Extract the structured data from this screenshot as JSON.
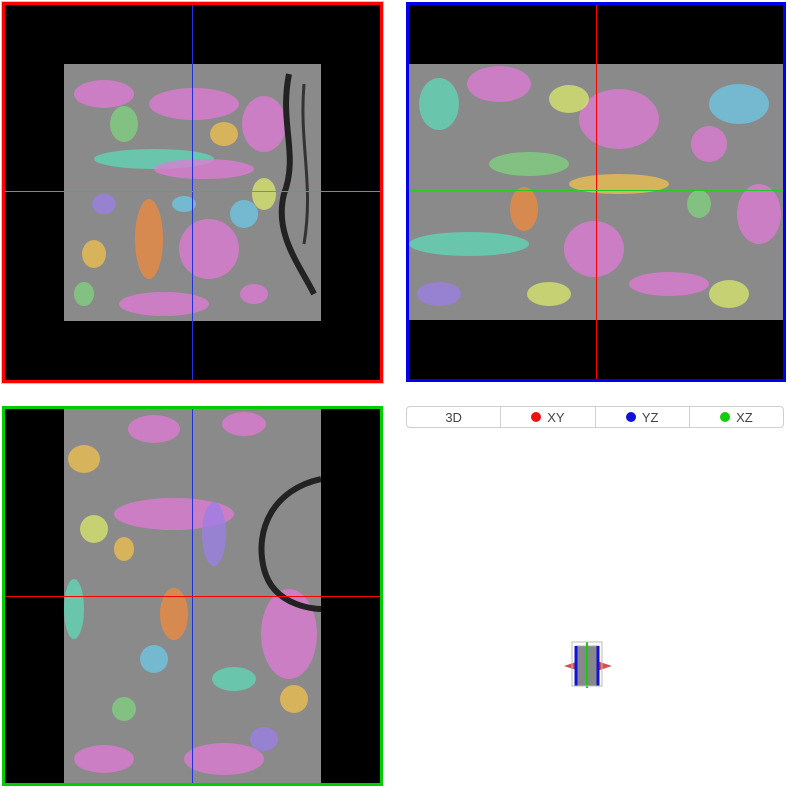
{
  "views": {
    "xy": {
      "label": "XY",
      "border_color": "#ff0000",
      "highlight_color": "#ffd700"
    },
    "yz": {
      "label": "YZ",
      "border_color": "#0000ee"
    },
    "xz": {
      "label": "XZ",
      "border_color": "#00cc00"
    }
  },
  "tabs": [
    {
      "label": "3D",
      "dot": null
    },
    {
      "label": "XY",
      "dot": "#ee1111"
    },
    {
      "label": "YZ",
      "dot": "#1111dd"
    },
    {
      "label": "XZ",
      "dot": "#11cc11"
    }
  ],
  "colors": {
    "crosshair_red": "#ff0000",
    "crosshair_blue": "#2233dd",
    "crosshair_green": "#22cc22",
    "segment_palette": [
      "#e07ad6",
      "#7fd37f",
      "#f0c24b",
      "#6ec8e8",
      "#f08a3c",
      "#9b7ee8",
      "#5fd8b8",
      "#d8e86a"
    ]
  },
  "icons": {
    "orientation_cube": "3d-cube-icon"
  }
}
